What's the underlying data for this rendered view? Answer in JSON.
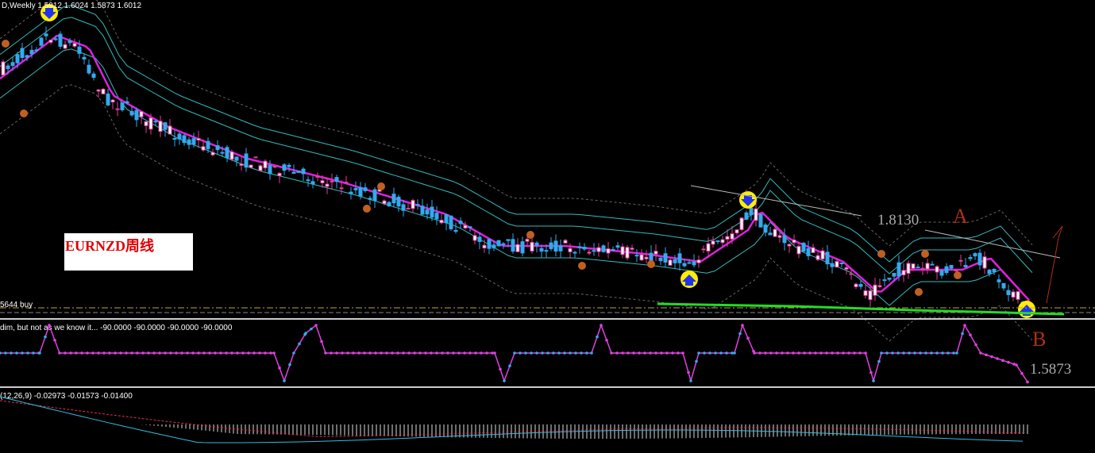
{
  "header": {
    "symbol_info": "D,Weekly  1.5912 1.6024 1.5873 1.6012"
  },
  "label": "EURNZD周线",
  "annotations": {
    "level_a": "1.8130",
    "point_a": "A",
    "point_b": "B",
    "level_b": "1.5873"
  },
  "order_line": "5644 buy",
  "indicator_1": "dim, but not as we know it...  -90.0000 -90.0000 -90.0000 -90.0000",
  "macd": "(12,26,9) -0.02973 -0.01573 -0.01400"
}
